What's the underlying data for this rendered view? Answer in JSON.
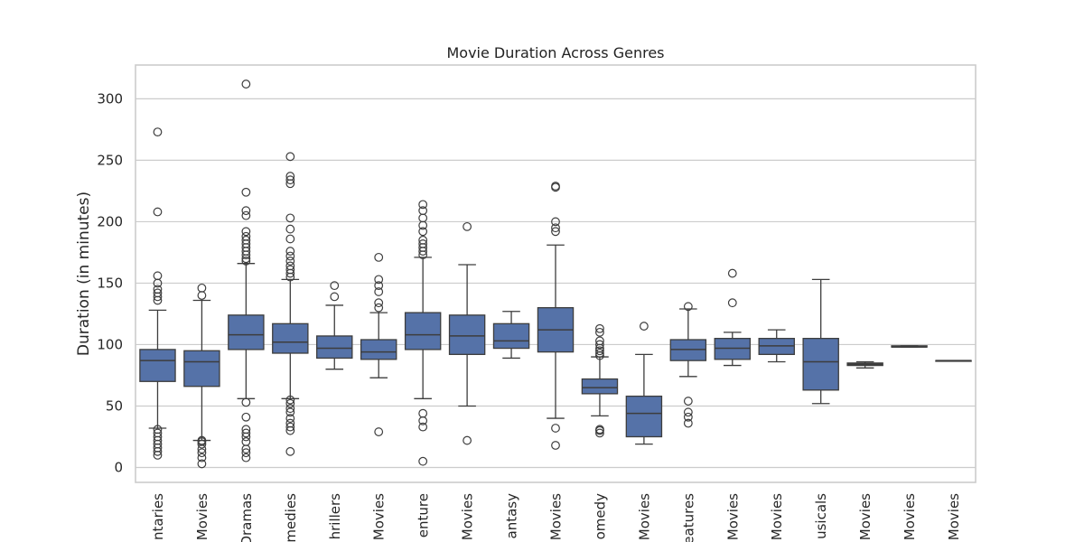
{
  "chart_data": {
    "type": "box",
    "title": "Movie Duration Across Genres",
    "xlabel": "",
    "ylabel": "Duration (in minutes)",
    "ylim": [
      -12,
      327
    ],
    "yticks": [
      0,
      50,
      100,
      150,
      200,
      250,
      300
    ],
    "grid": true,
    "box_color": "#5572a8",
    "categories": [
      "Documentaries",
      "Children & Family Movies",
      "Dramas",
      "Comedies",
      "Thrillers",
      "Horror Movies",
      "Action & Adventure",
      "Independent Movies",
      "Sci-Fi & Fantasy",
      "International Movies",
      "Stand-Up Comedy",
      "Anime Features",
      "Cult Movies",
      "Romantic Movies",
      "Musicals",
      "Music & Musicals",
      "Classic Movies",
      "LGBTQ Movies",
      "Sports Movies"
    ],
    "tick_labels": [
      "ntaries",
      "Movies",
      "Dramas",
      "medies",
      "hrillers",
      "Movies",
      "enture",
      "Movies",
      "antasy",
      "Movies",
      "omedy",
      "Movies",
      "eatures",
      "Movies",
      "Movies",
      "usicals",
      "Movies",
      "Movies",
      "Movies"
    ],
    "boxes": [
      {
        "whislo": 32,
        "q1": 70,
        "med": 87,
        "q3": 96,
        "whishi": 128,
        "fliers": [
          10,
          13,
          16,
          19,
          22,
          25,
          28,
          31,
          136,
          139,
          142,
          145,
          150,
          156,
          208,
          273
        ]
      },
      {
        "whislo": 22,
        "q1": 66,
        "med": 86,
        "q3": 95,
        "whishi": 136,
        "fliers": [
          3,
          8,
          12,
          15,
          19,
          21,
          22,
          140,
          146
        ]
      },
      {
        "whislo": 56,
        "q1": 96,
        "med": 108,
        "q3": 124,
        "whishi": 166,
        "fliers": [
          8,
          12,
          15,
          21,
          25,
          28,
          31,
          41,
          53,
          168,
          170,
          173,
          176,
          179,
          182,
          185,
          188,
          192,
          205,
          209,
          224,
          312
        ]
      },
      {
        "whislo": 56,
        "q1": 93,
        "med": 102,
        "q3": 117,
        "whishi": 153,
        "fliers": [
          13,
          30,
          33,
          36,
          40,
          45,
          48,
          52,
          55,
          155,
          158,
          161,
          164,
          168,
          172,
          176,
          186,
          194,
          203,
          231,
          234,
          237,
          253
        ]
      },
      {
        "whislo": 80,
        "q1": 89,
        "med": 97,
        "q3": 107,
        "whishi": 132,
        "fliers": [
          139,
          148
        ]
      },
      {
        "whislo": 73,
        "q1": 88,
        "med": 94,
        "q3": 104,
        "whishi": 126,
        "fliers": [
          29,
          130,
          134,
          143,
          148,
          153,
          171
        ]
      },
      {
        "whislo": 56,
        "q1": 96,
        "med": 108,
        "q3": 126,
        "whishi": 171,
        "fliers": [
          5,
          33,
          38,
          44,
          173,
          176,
          179,
          182,
          185,
          192,
          197,
          203,
          209,
          214
        ]
      },
      {
        "whislo": 50,
        "q1": 92,
        "med": 107,
        "q3": 124,
        "whishi": 165,
        "fliers": [
          22,
          196
        ]
      },
      {
        "whislo": 89,
        "q1": 97,
        "med": 103,
        "q3": 117,
        "whishi": 127,
        "fliers": []
      },
      {
        "whislo": 40,
        "q1": 94,
        "med": 112,
        "q3": 130,
        "whishi": 181,
        "fliers": [
          18,
          32,
          192,
          195,
          200,
          228,
          229
        ]
      },
      {
        "whislo": 42,
        "q1": 60,
        "med": 65,
        "q3": 72,
        "whishi": 90,
        "fliers": [
          28,
          30,
          31,
          91,
          93,
          95,
          97,
          100,
          103,
          110,
          113
        ]
      },
      {
        "whislo": 19,
        "q1": 25,
        "med": 44,
        "q3": 58,
        "whishi": 92,
        "fliers": [
          115
        ]
      },
      {
        "whislo": 74,
        "q1": 87,
        "med": 96,
        "q3": 104,
        "whishi": 129,
        "fliers": [
          36,
          41,
          45,
          54,
          131
        ]
      },
      {
        "whislo": 83,
        "q1": 88,
        "med": 97,
        "q3": 105,
        "whishi": 110,
        "fliers": [
          134,
          158
        ]
      },
      {
        "whislo": 86,
        "q1": 92,
        "med": 99,
        "q3": 105,
        "whishi": 112,
        "fliers": []
      },
      {
        "whislo": 52,
        "q1": 63,
        "med": 86,
        "q3": 105,
        "whishi": 153,
        "fliers": []
      },
      {
        "whislo": 81,
        "q1": 83,
        "med": 84,
        "q3": 85,
        "whishi": 86,
        "fliers": []
      },
      {
        "whislo": 98,
        "q1": 98,
        "med": 98,
        "q3": 99,
        "whishi": 99,
        "fliers": []
      },
      {
        "whislo": 87,
        "q1": 87,
        "med": 87,
        "q3": 87,
        "whishi": 87,
        "fliers": []
      }
    ]
  }
}
